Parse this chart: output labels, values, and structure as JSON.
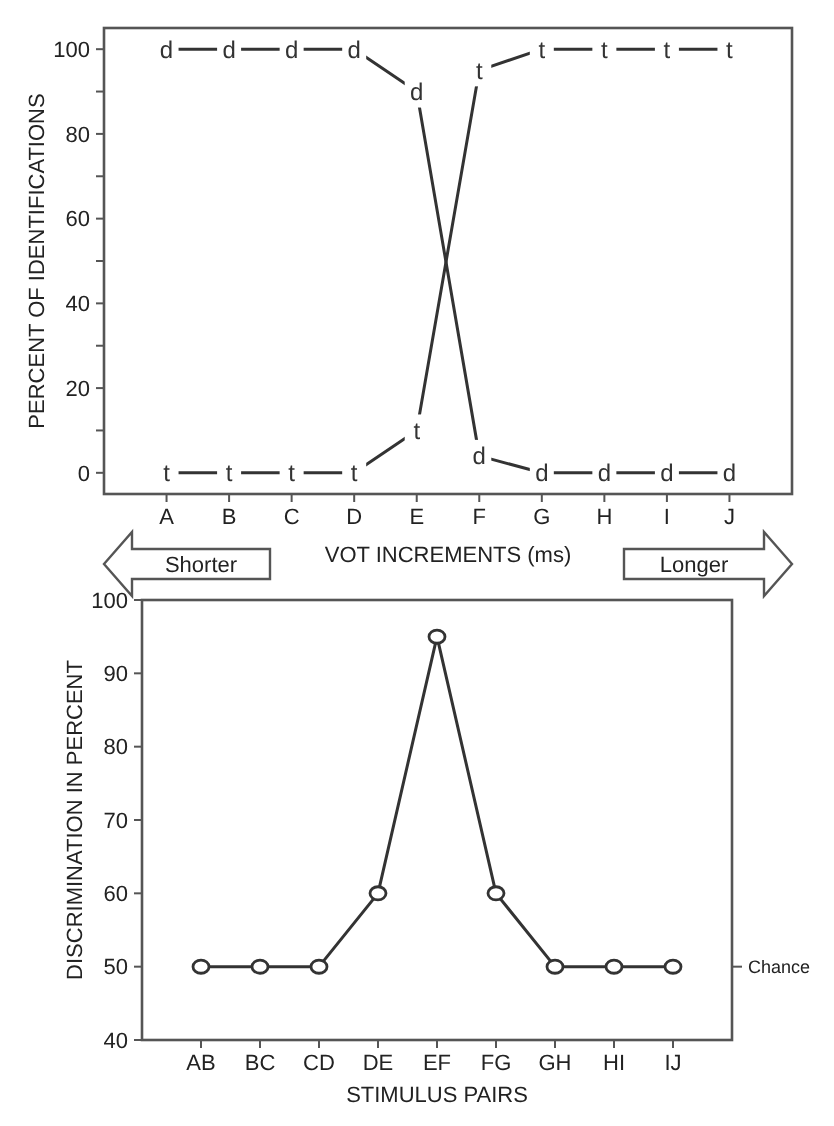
{
  "chart_data": [
    {
      "type": "line",
      "xlabel": "VOT INCREMENTS (ms)",
      "ylabel": "PERCENT OF IDENTIFICATIONS",
      "categories": [
        "A",
        "B",
        "C",
        "D",
        "E",
        "F",
        "G",
        "H",
        "I",
        "J"
      ],
      "series": [
        {
          "name": "d",
          "color": "#333333",
          "values": [
            100,
            100,
            100,
            100,
            90,
            4,
            0,
            0,
            0,
            0
          ]
        },
        {
          "name": "t",
          "color": "#333333",
          "values": [
            0,
            0,
            0,
            0,
            10,
            95,
            100,
            100,
            100,
            100
          ]
        }
      ],
      "ylim": [
        -5,
        105
      ],
      "yticks": [
        0,
        {
          "value": 10,
          "label": null
        },
        20,
        {
          "value": 30,
          "label": null
        },
        40,
        {
          "value": 50,
          "label": null
        },
        60,
        {
          "value": 70,
          "label": null
        },
        80,
        {
          "value": 90,
          "label": null
        },
        100
      ],
      "annotations": [
        "Shorter",
        "Longer"
      ],
      "legend": false,
      "grid": false
    },
    {
      "type": "line",
      "xlabel": "STIMULUS PAIRS",
      "ylabel": "DISCRIMINATION IN PERCENT",
      "categories": [
        "AB",
        "BC",
        "CD",
        "DE",
        "EF",
        "FG",
        "GH",
        "HI",
        "IJ"
      ],
      "series": [
        {
          "color": "#333333",
          "values": [
            50,
            50,
            50,
            60,
            95,
            60,
            50,
            50,
            50
          ]
        }
      ],
      "ylim": [
        40,
        100
      ],
      "yticks": [
        40,
        50,
        60,
        70,
        80,
        90,
        100
      ],
      "marker": "circle",
      "ref_lines": [
        {
          "axis": "y",
          "value": 50,
          "label": "Chance"
        }
      ],
      "legend": false,
      "grid": false
    }
  ]
}
